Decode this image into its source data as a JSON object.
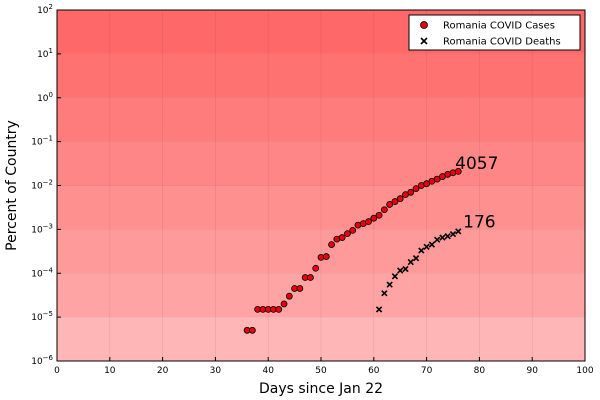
{
  "chart_data": {
    "type": "scatter",
    "title": "",
    "xlabel": "Days since Jan 22",
    "ylabel": "Percent of Country",
    "xlim": [
      0,
      100
    ],
    "ylim": [
      1e-06,
      100
    ],
    "yscale": "log",
    "x_ticks": [
      0,
      10,
      20,
      30,
      40,
      50,
      60,
      70,
      80,
      90,
      100
    ],
    "x_tick_labels": [
      "0",
      "10",
      "20",
      "30",
      "40",
      "50",
      "60",
      "70",
      "80",
      "90",
      "100"
    ],
    "y_tick_exponents": [
      -6,
      -5,
      -4,
      -3,
      -2,
      -1,
      0,
      1,
      2
    ],
    "y_tick_base": "10",
    "grid": true,
    "background_bands": [
      "#ffb6b6",
      "#ffa4a4",
      "#ff9a9a",
      "#ff9090",
      "#ff8686",
      "#ff7c7c",
      "#ff7272",
      "#ff6868"
    ],
    "legend_position": "top-right",
    "series": [
      {
        "name": "Romania COVID Cases",
        "marker": "circle",
        "color": "#e8000b",
        "x": [
          36,
          37,
          38,
          39,
          40,
          41,
          42,
          43,
          44,
          45,
          46,
          47,
          48,
          49,
          50,
          51,
          52,
          53,
          54,
          55,
          56,
          57,
          58,
          59,
          60,
          61,
          62,
          63,
          64,
          65,
          66,
          67,
          68,
          69,
          70,
          71,
          72,
          73,
          74,
          75,
          76
        ],
        "y": [
          5e-06,
          5e-06,
          1.5e-05,
          1.5e-05,
          1.5e-05,
          1.5e-05,
          1.5e-05,
          2e-05,
          3e-05,
          4.5e-05,
          4.5e-05,
          8e-05,
          8e-05,
          0.00013,
          0.00023,
          0.00024,
          0.00045,
          0.0006,
          0.00065,
          0.0008,
          0.00095,
          0.00125,
          0.00135,
          0.0015,
          0.0018,
          0.0021,
          0.0028,
          0.0037,
          0.0043,
          0.005,
          0.0062,
          0.007,
          0.0085,
          0.01,
          0.011,
          0.0125,
          0.014,
          0.016,
          0.018,
          0.0195,
          0.021
        ]
      },
      {
        "name": "Romania COVID Deaths",
        "marker": "x",
        "color": "#000000",
        "x": [
          61,
          62,
          63,
          64,
          65,
          66,
          67,
          68,
          69,
          70,
          71,
          72,
          73,
          74,
          75,
          76
        ],
        "y": [
          1.5e-05,
          3.5e-05,
          5.5e-05,
          8.5e-05,
          0.000115,
          0.000125,
          0.00018,
          0.00022,
          0.00033,
          0.0004,
          0.00045,
          0.00058,
          0.00065,
          0.0007,
          0.00078,
          0.0009
        ]
      }
    ],
    "annotations": [
      {
        "text": "4057",
        "x": 79.5,
        "y": 0.033
      },
      {
        "text": "176",
        "x": 80,
        "y": 0.0015
      }
    ]
  }
}
